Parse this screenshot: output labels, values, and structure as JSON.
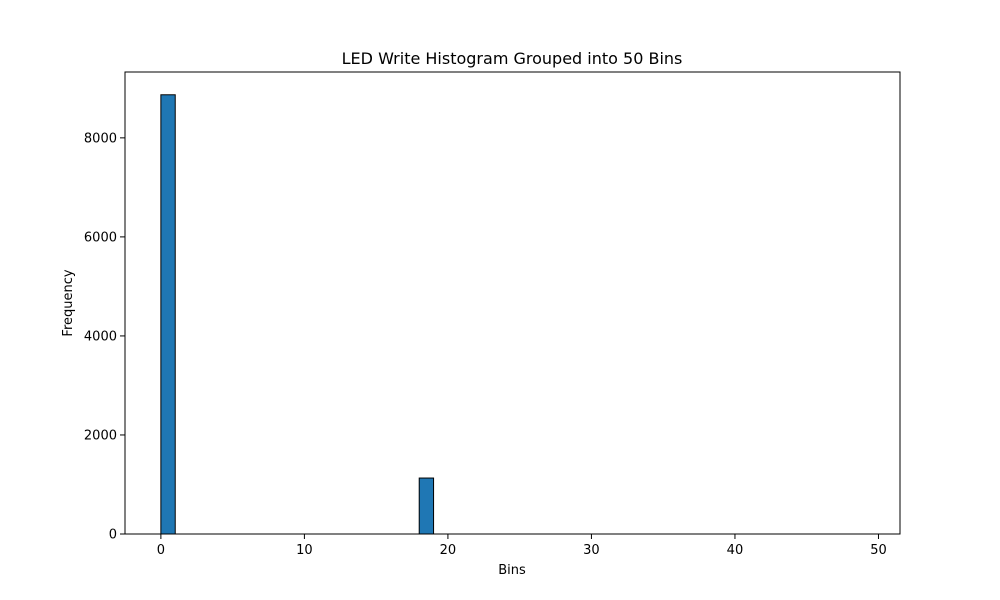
{
  "chart_data": {
    "type": "bar",
    "title": "LED Write Histogram Grouped into 50 Bins",
    "xlabel": "Bins",
    "ylabel": "Frequency",
    "x": [
      0,
      1,
      2,
      3,
      4,
      5,
      6,
      7,
      8,
      9,
      10,
      11,
      12,
      13,
      14,
      15,
      16,
      17,
      18,
      19,
      20,
      21,
      22,
      23,
      24,
      25,
      26,
      27,
      28,
      29,
      30,
      31,
      32,
      33,
      34,
      35,
      36,
      37,
      38,
      39,
      40,
      41,
      42,
      43,
      44,
      45,
      46,
      47,
      48,
      49
    ],
    "values": [
      8870,
      0,
      0,
      0,
      0,
      0,
      0,
      0,
      0,
      0,
      0,
      0,
      0,
      0,
      0,
      0,
      0,
      0,
      1130,
      0,
      0,
      0,
      0,
      0,
      0,
      0,
      0,
      0,
      0,
      0,
      0,
      0,
      0,
      0,
      0,
      0,
      0,
      0,
      0,
      0,
      0,
      0,
      0,
      0,
      0,
      0,
      0,
      0,
      0,
      0
    ],
    "xlim": [
      -2.5,
      51.5
    ],
    "ylim": [
      0,
      9330
    ],
    "xticks": [
      0,
      10,
      20,
      30,
      40,
      50
    ],
    "yticks": [
      0,
      2000,
      4000,
      6000,
      8000
    ],
    "grid": false,
    "bar_color": "#1f77b4",
    "edge_color": "#000000"
  }
}
